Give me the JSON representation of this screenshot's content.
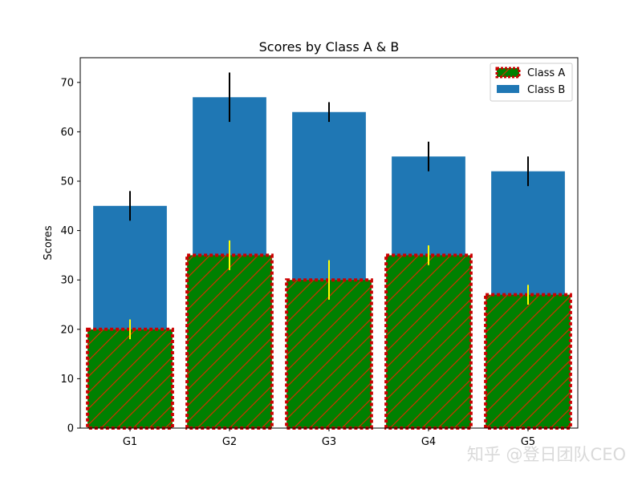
{
  "chart_data": {
    "type": "bar",
    "title": "Scores by Class A & B",
    "xlabel": "",
    "ylabel": "Scores",
    "categories": [
      "G1",
      "G2",
      "G3",
      "G4",
      "G5"
    ],
    "ylim": [
      0,
      75
    ],
    "yticks": [
      0,
      10,
      20,
      30,
      40,
      50,
      60,
      70
    ],
    "stacked": false,
    "series": [
      {
        "name": "Class B",
        "values": [
          45,
          67,
          64,
          55,
          52
        ],
        "errors": [
          3,
          5,
          2,
          3,
          3
        ],
        "color": "#1f77b4",
        "error_color": "#000000"
      },
      {
        "name": "Class A",
        "values": [
          20,
          35,
          30,
          35,
          27
        ],
        "errors": [
          2,
          3,
          4,
          2,
          2
        ],
        "color": "#008000",
        "edge_color": "#cc0000",
        "hatch": "/",
        "hatch_color": "#cc3300",
        "error_color": "#ffff00"
      }
    ],
    "legend": {
      "placement": "top-right",
      "entries": [
        "Class A",
        "Class B"
      ]
    },
    "grid": false
  },
  "watermark": "知乎 @登日团队CEO"
}
